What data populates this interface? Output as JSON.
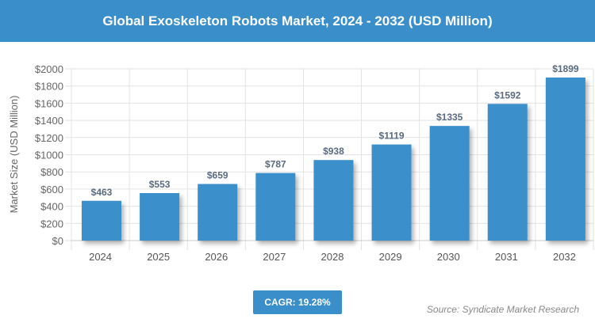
{
  "header": {
    "title": "Global Exoskeleton Robots Market, 2024 - 2032 (USD Million)"
  },
  "chart_data": {
    "type": "bar",
    "title": "Global Exoskeleton Robots Market, 2024 - 2032 (USD Million)",
    "categories": [
      "2024",
      "2025",
      "2026",
      "2027",
      "2028",
      "2029",
      "2030",
      "2031",
      "2032"
    ],
    "values": [
      463,
      553,
      659,
      787,
      938,
      1119,
      1335,
      1592,
      1899
    ],
    "data_labels": [
      "$463",
      "$553",
      "$659",
      "$787",
      "$938",
      "$1119",
      "$1335",
      "$1592",
      "$1899"
    ],
    "xlabel": "",
    "ylabel": "Market Size (USD Million)",
    "ylim": [
      0,
      2000
    ],
    "yticks": [
      0,
      200,
      400,
      600,
      800,
      1000,
      1200,
      1400,
      1600,
      1800,
      2000
    ],
    "ytick_labels": [
      "$0",
      "$200",
      "$400",
      "$600",
      "$800",
      "$1000",
      "$1200",
      "$1400",
      "$1600",
      "$1800",
      "$2000"
    ],
    "grid": true,
    "bar_color": "#3a8fcb"
  },
  "footer": {
    "cagr": "CAGR: 19.28%",
    "source": "Source: Syndicate Market Research"
  }
}
